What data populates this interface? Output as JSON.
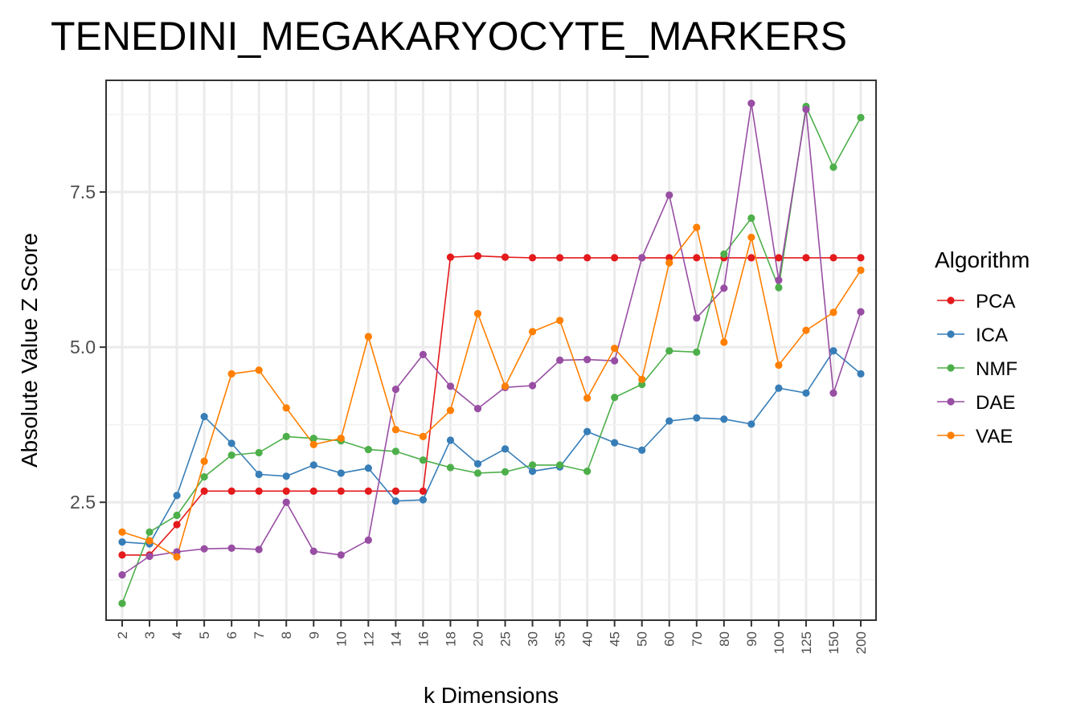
{
  "chart_data": {
    "type": "line",
    "title": "TENEDINI_MEGAKARYOCYTE_MARKERS",
    "xlabel": "k Dimensions",
    "ylabel": "Absolute Value Z Score",
    "categories": [
      "2",
      "3",
      "4",
      "5",
      "6",
      "7",
      "8",
      "9",
      "10",
      "12",
      "14",
      "16",
      "18",
      "20",
      "25",
      "30",
      "35",
      "40",
      "45",
      "50",
      "60",
      "70",
      "80",
      "90",
      "100",
      "125",
      "150",
      "200"
    ],
    "yticks": [
      2.5,
      5.0,
      7.5
    ],
    "ytick_labels": [
      "2.5",
      "5.0",
      "7.5"
    ],
    "ylim": [
      0.6,
      9.3
    ],
    "grid": true,
    "legend": {
      "title": "Algorithm",
      "position": "right"
    },
    "series": [
      {
        "name": "PCA",
        "color": "#e41a1c",
        "values": [
          1.65,
          1.65,
          2.14,
          2.68,
          2.68,
          2.68,
          2.68,
          2.68,
          2.68,
          2.68,
          2.68,
          2.68,
          6.45,
          6.47,
          6.45,
          6.44,
          6.44,
          6.44,
          6.44,
          6.44,
          6.44,
          6.44,
          6.44,
          6.44,
          6.44,
          6.44,
          6.44,
          6.44
        ]
      },
      {
        "name": "ICA",
        "color": "#377eb8",
        "values": [
          1.86,
          1.83,
          2.61,
          3.88,
          3.45,
          2.95,
          2.92,
          3.1,
          2.97,
          3.05,
          2.52,
          2.54,
          3.5,
          3.12,
          3.36,
          3.0,
          3.07,
          3.64,
          3.46,
          3.34,
          3.81,
          3.86,
          3.84,
          3.76,
          4.34,
          4.26,
          4.94,
          4.57
        ]
      },
      {
        "name": "NMF",
        "color": "#4daf4a",
        "values": [
          0.87,
          2.02,
          2.29,
          2.91,
          3.26,
          3.3,
          3.56,
          3.53,
          3.49,
          3.35,
          3.32,
          3.18,
          3.06,
          2.97,
          2.99,
          3.1,
          3.1,
          3.0,
          4.19,
          4.4,
          4.94,
          4.92,
          6.5,
          7.08,
          5.96,
          8.88,
          7.9,
          8.7
        ]
      },
      {
        "name": "DAE",
        "color": "#984ea3",
        "values": [
          1.33,
          1.63,
          1.7,
          1.75,
          1.76,
          1.74,
          2.5,
          1.71,
          1.65,
          1.89,
          4.32,
          4.88,
          4.37,
          4.01,
          4.35,
          4.38,
          4.79,
          4.8,
          4.78,
          6.44,
          7.45,
          5.47,
          5.95,
          8.93,
          6.08,
          8.83,
          4.26,
          5.57
        ]
      },
      {
        "name": "VAE",
        "color": "#ff7f00",
        "values": [
          2.02,
          1.88,
          1.62,
          3.16,
          4.57,
          4.63,
          4.02,
          3.43,
          3.53,
          5.17,
          3.67,
          3.56,
          3.98,
          5.54,
          4.37,
          5.25,
          5.43,
          4.18,
          4.98,
          4.48,
          6.36,
          6.93,
          5.08,
          6.77,
          4.71,
          5.27,
          5.56,
          6.24
        ]
      }
    ]
  }
}
